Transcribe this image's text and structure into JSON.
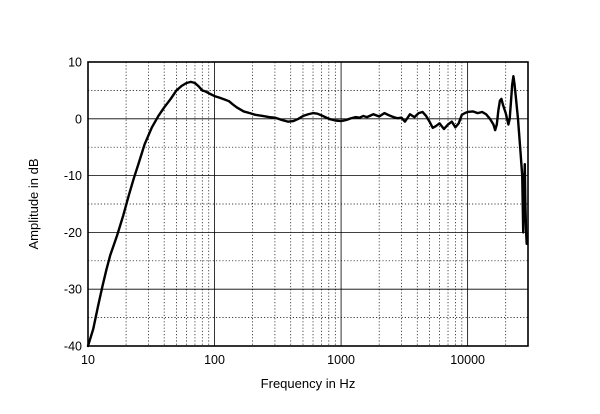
{
  "chart_data": {
    "type": "line",
    "title": "",
    "xlabel": "Frequency in Hz",
    "ylabel": "Amplitude in dB",
    "xscale": "log",
    "xlim": [
      10,
      30000
    ],
    "ylim": [
      -40,
      10
    ],
    "grid": true,
    "legend": "none",
    "x_ticks": [
      10,
      100,
      1000,
      10000
    ],
    "x_tick_labels": [
      "10",
      "100",
      "1000",
      "10000"
    ],
    "y_ticks": [
      10,
      0,
      -10,
      -20,
      -30,
      -40
    ],
    "y_tick_labels": [
      "10",
      "0",
      "-10",
      "-20",
      "-30",
      "-40"
    ],
    "series": [
      {
        "name": "",
        "color": "#000000",
        "x": [
          10,
          11,
          12,
          13,
          14,
          15,
          17,
          19,
          21,
          23,
          25,
          28,
          32,
          36,
          40,
          45,
          50,
          55,
          60,
          65,
          70,
          75,
          80,
          85,
          90,
          100,
          110,
          120,
          130,
          140,
          150,
          170,
          190,
          210,
          240,
          270,
          300,
          340,
          380,
          420,
          460,
          500,
          550,
          600,
          650,
          700,
          750,
          800,
          900,
          1000,
          1100,
          1200,
          1300,
          1400,
          1500,
          1600,
          1800,
          2000,
          2200,
          2400,
          2600,
          2800,
          3000,
          3200,
          3500,
          3800,
          4100,
          4400,
          4700,
          5000,
          5300,
          5600,
          6000,
          6500,
          7000,
          7500,
          8000,
          8500,
          9000,
          9500,
          10000,
          11000,
          12000,
          13000,
          14000,
          15000,
          16000,
          16500,
          17000,
          17500,
          18000,
          18500,
          19000,
          20000,
          21000,
          21500,
          22000,
          22500,
          23000,
          23500,
          24000,
          25000,
          26000,
          27000,
          27500,
          28000,
          28300,
          28600,
          29000,
          29300,
          29600
        ],
        "y": [
          -40,
          -37,
          -33,
          -29.5,
          -26.5,
          -24,
          -20.5,
          -17,
          -13.5,
          -10.5,
          -8,
          -4.5,
          -1.5,
          0.5,
          2,
          3.5,
          5,
          5.8,
          6.3,
          6.5,
          6.3,
          5.7,
          5,
          4.8,
          4.5,
          4,
          3.7,
          3.4,
          3.1,
          2.5,
          2,
          1.3,
          1.0,
          0.7,
          0.5,
          0.3,
          0.2,
          -0.2,
          -0.5,
          -0.4,
          0,
          0.5,
          0.8,
          1.0,
          0.9,
          0.6,
          0.3,
          0,
          -0.3,
          -0.4,
          -0.2,
          0.1,
          0.3,
          0.2,
          0.5,
          0.3,
          0.8,
          0.4,
          1.0,
          0.6,
          0.3,
          0.1,
          0.2,
          -0.5,
          0.8,
          0.3,
          1.0,
          1.2,
          0.5,
          -0.5,
          -1.6,
          -1.3,
          -0.8,
          -1.8,
          -1.0,
          -0.5,
          -1.5,
          -0.8,
          0.7,
          1.0,
          1.2,
          1.3,
          1.0,
          1.2,
          0.8,
          0,
          -1.0,
          -2,
          -1,
          1.5,
          3.2,
          3.5,
          2.5,
          1,
          -1,
          0,
          3,
          6,
          7.5,
          6,
          4,
          0,
          -5,
          -10,
          -20,
          -12,
          -8,
          -15,
          -20,
          -22,
          -21.5
        ]
      }
    ]
  }
}
